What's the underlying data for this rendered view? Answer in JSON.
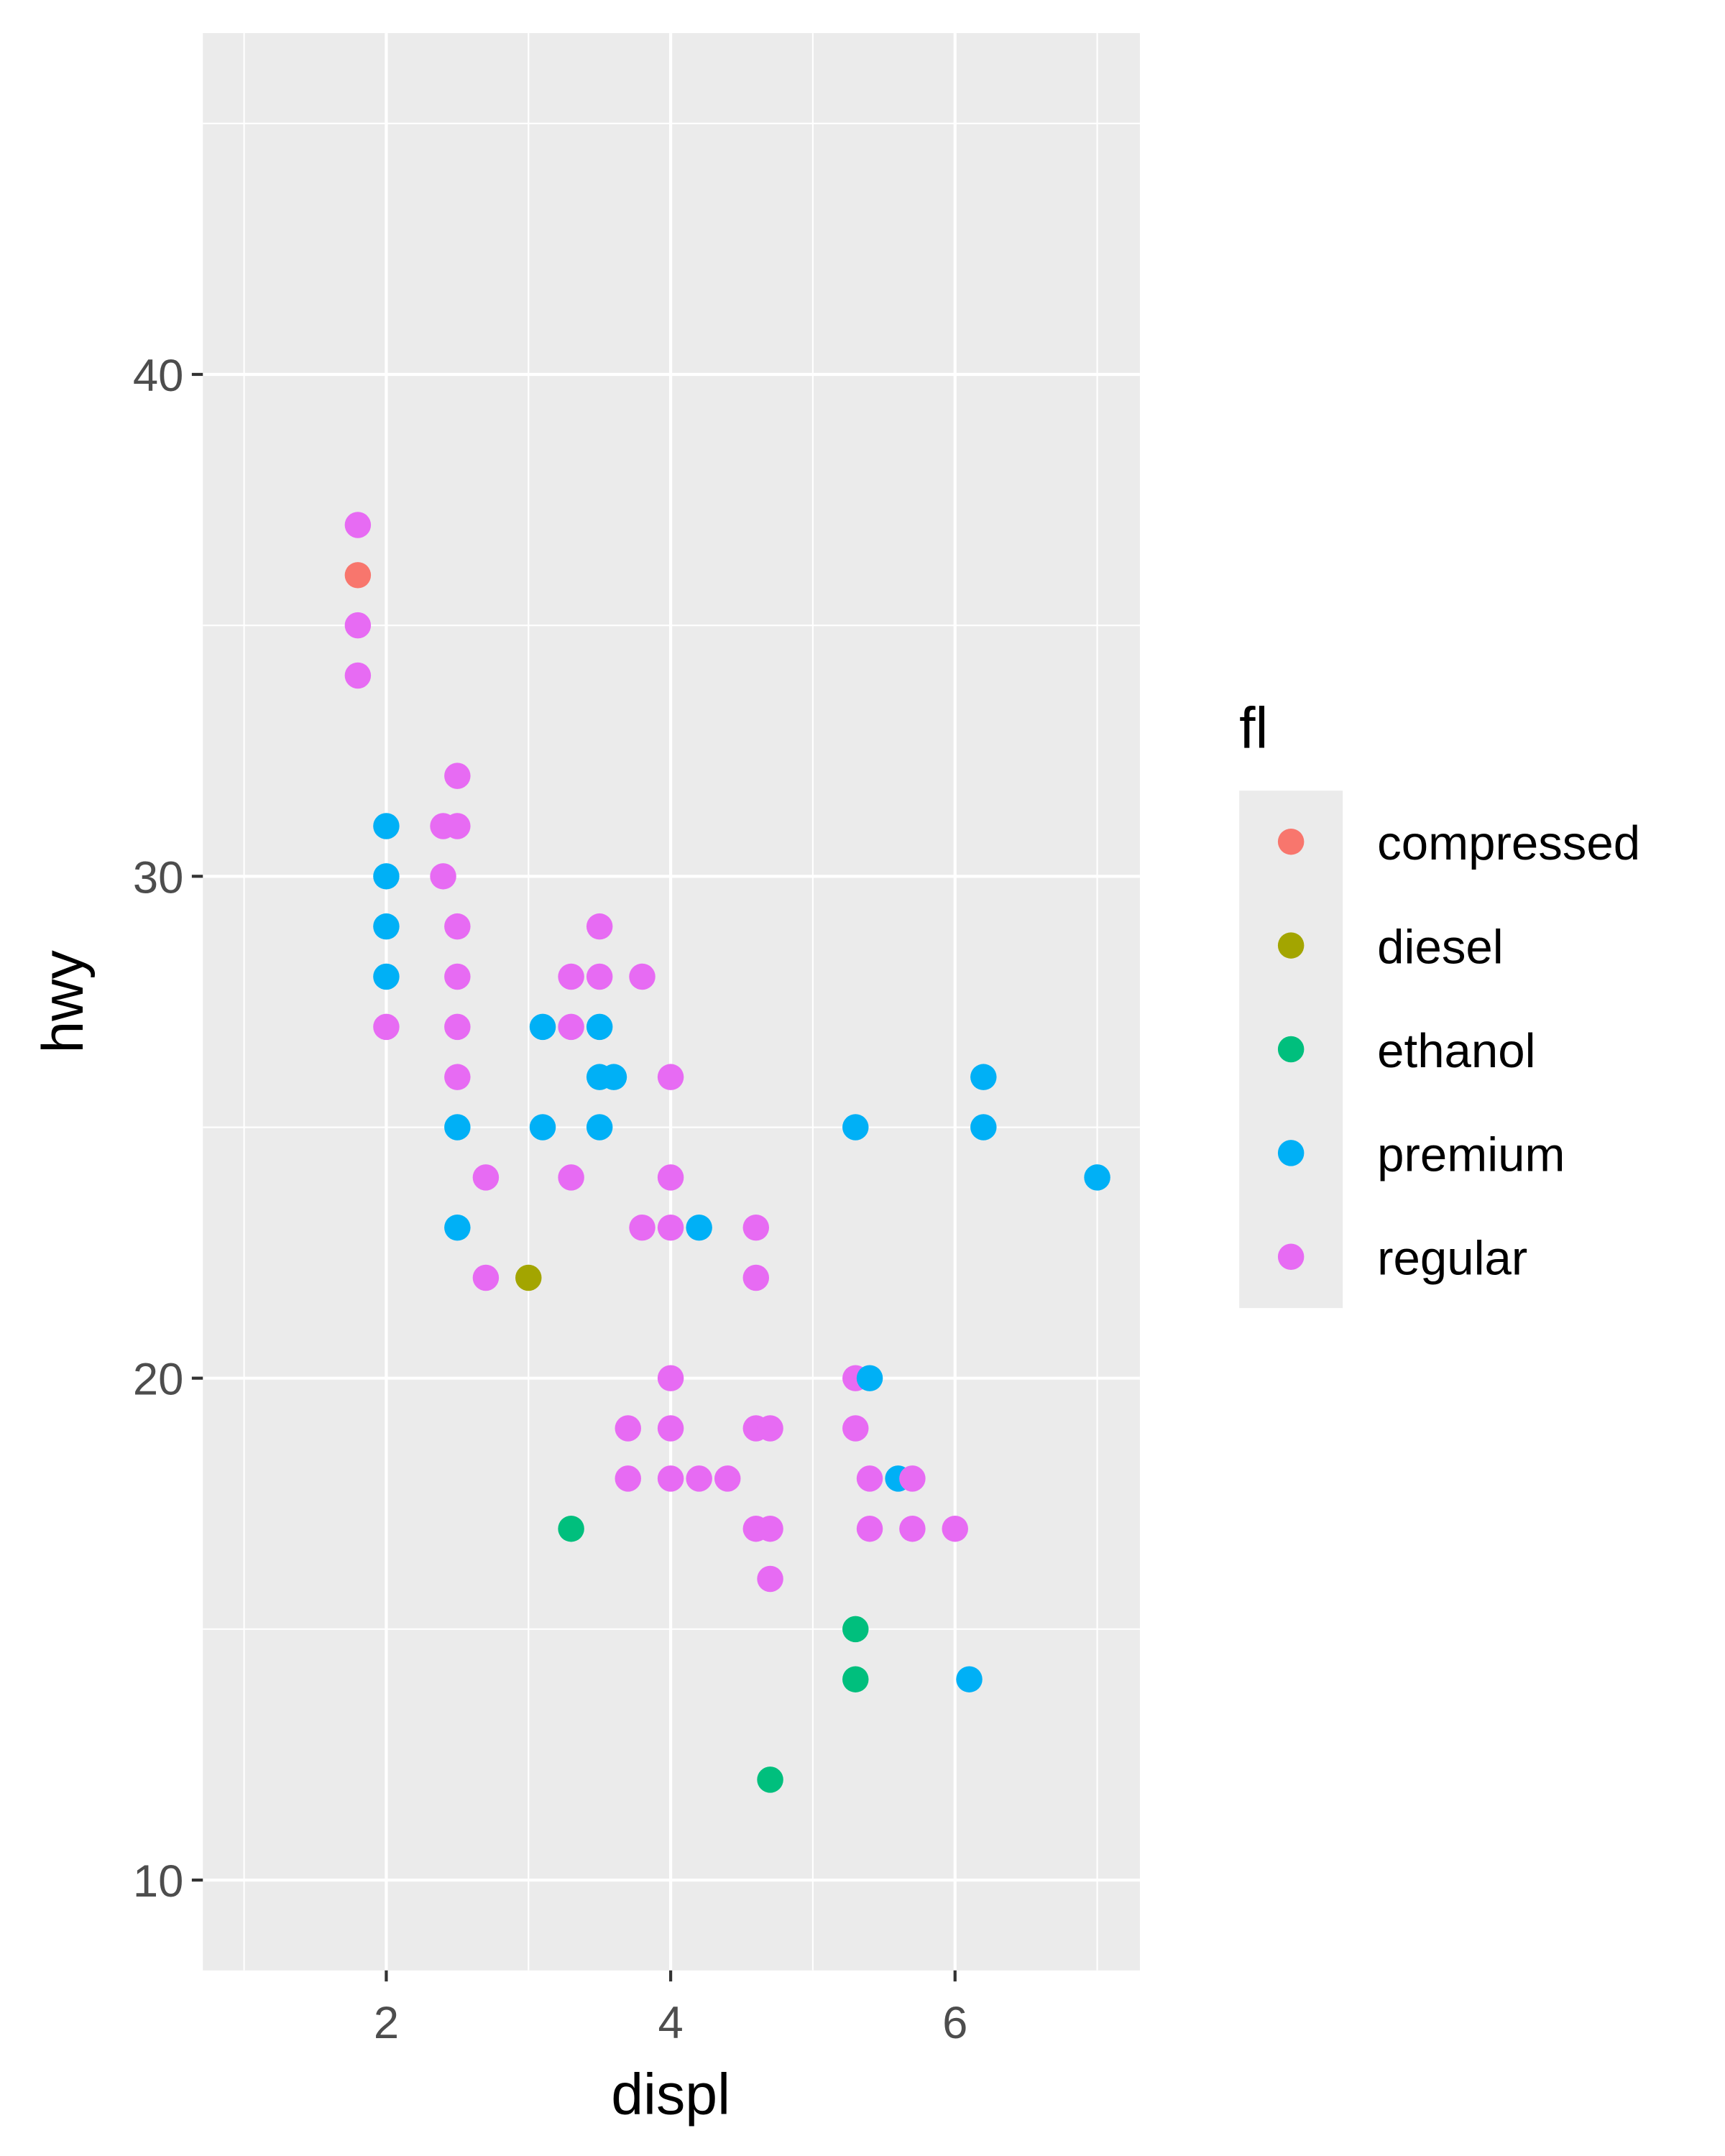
{
  "chart_data": {
    "type": "scatter",
    "title": "",
    "xlabel": "displ",
    "ylabel": "hwy",
    "xlim": [
      0.71,
      7.3
    ],
    "ylim": [
      8.2,
      46.8
    ],
    "x_ticks": [
      2,
      4,
      6
    ],
    "y_ticks": [
      10,
      20,
      30,
      40
    ],
    "x_tick_labels": [
      "2",
      "4",
      "6"
    ],
    "y_tick_labels": [
      "10",
      "20",
      "30",
      "40"
    ],
    "x_minor": [
      1,
      3,
      5,
      7
    ],
    "y_minor": [
      15,
      25,
      35,
      45
    ],
    "grid": true,
    "legend": {
      "title": "fl",
      "placement": "right",
      "entries": [
        "compressed",
        "diesel",
        "ethanol",
        "premium",
        "regular"
      ]
    },
    "colors": {
      "compressed": "#F8766D",
      "diesel": "#A3A500",
      "ethanol": "#00BF7D",
      "premium": "#00B0F6",
      "regular": "#E76BF3"
    },
    "points": [
      {
        "x": 1.8,
        "y": 37,
        "fl": "regular"
      },
      {
        "x": 1.8,
        "y": 36,
        "fl": "compressed"
      },
      {
        "x": 1.8,
        "y": 35,
        "fl": "regular"
      },
      {
        "x": 1.8,
        "y": 34,
        "fl": "regular"
      },
      {
        "x": 2.5,
        "y": 32,
        "fl": "regular"
      },
      {
        "x": 2.0,
        "y": 31,
        "fl": "premium"
      },
      {
        "x": 2.0,
        "y": 30,
        "fl": "premium"
      },
      {
        "x": 2.0,
        "y": 29,
        "fl": "premium"
      },
      {
        "x": 2.0,
        "y": 28,
        "fl": "premium"
      },
      {
        "x": 2.0,
        "y": 27,
        "fl": "regular"
      },
      {
        "x": 2.4,
        "y": 31,
        "fl": "regular"
      },
      {
        "x": 2.5,
        "y": 31,
        "fl": "regular"
      },
      {
        "x": 2.4,
        "y": 30,
        "fl": "regular"
      },
      {
        "x": 2.5,
        "y": 29,
        "fl": "regular"
      },
      {
        "x": 2.5,
        "y": 28,
        "fl": "regular"
      },
      {
        "x": 2.5,
        "y": 27,
        "fl": "regular"
      },
      {
        "x": 2.5,
        "y": 26,
        "fl": "regular"
      },
      {
        "x": 2.5,
        "y": 25,
        "fl": "premium"
      },
      {
        "x": 2.7,
        "y": 24,
        "fl": "regular"
      },
      {
        "x": 2.5,
        "y": 23,
        "fl": "premium"
      },
      {
        "x": 2.7,
        "y": 22,
        "fl": "regular"
      },
      {
        "x": 3.0,
        "y": 22,
        "fl": "diesel"
      },
      {
        "x": 3.3,
        "y": 28,
        "fl": "regular"
      },
      {
        "x": 3.3,
        "y": 27,
        "fl": "regular"
      },
      {
        "x": 3.1,
        "y": 27,
        "fl": "premium"
      },
      {
        "x": 3.1,
        "y": 25,
        "fl": "premium"
      },
      {
        "x": 3.3,
        "y": 24,
        "fl": "regular"
      },
      {
        "x": 3.5,
        "y": 27,
        "fl": "premium"
      },
      {
        "x": 3.5,
        "y": 29,
        "fl": "regular"
      },
      {
        "x": 3.5,
        "y": 28,
        "fl": "regular"
      },
      {
        "x": 3.8,
        "y": 28,
        "fl": "regular"
      },
      {
        "x": 3.5,
        "y": 26,
        "fl": "premium"
      },
      {
        "x": 3.6,
        "y": 26,
        "fl": "premium"
      },
      {
        "x": 3.5,
        "y": 25,
        "fl": "premium"
      },
      {
        "x": 4.0,
        "y": 26,
        "fl": "regular"
      },
      {
        "x": 4.0,
        "y": 24,
        "fl": "regular"
      },
      {
        "x": 3.8,
        "y": 23,
        "fl": "regular"
      },
      {
        "x": 4.0,
        "y": 23,
        "fl": "regular"
      },
      {
        "x": 4.2,
        "y": 23,
        "fl": "premium"
      },
      {
        "x": 4.6,
        "y": 23,
        "fl": "regular"
      },
      {
        "x": 4.6,
        "y": 22,
        "fl": "regular"
      },
      {
        "x": 5.3,
        "y": 25,
        "fl": "premium"
      },
      {
        "x": 6.2,
        "y": 26,
        "fl": "premium"
      },
      {
        "x": 6.2,
        "y": 25,
        "fl": "premium"
      },
      {
        "x": 7.0,
        "y": 24,
        "fl": "premium"
      },
      {
        "x": 4.0,
        "y": 20,
        "fl": "regular"
      },
      {
        "x": 3.7,
        "y": 19,
        "fl": "regular"
      },
      {
        "x": 4.0,
        "y": 19,
        "fl": "regular"
      },
      {
        "x": 3.7,
        "y": 18,
        "fl": "regular"
      },
      {
        "x": 4.0,
        "y": 18,
        "fl": "regular"
      },
      {
        "x": 4.2,
        "y": 18,
        "fl": "regular"
      },
      {
        "x": 4.4,
        "y": 18,
        "fl": "regular"
      },
      {
        "x": 4.6,
        "y": 19,
        "fl": "regular"
      },
      {
        "x": 4.7,
        "y": 19,
        "fl": "regular"
      },
      {
        "x": 4.6,
        "y": 17,
        "fl": "regular"
      },
      {
        "x": 4.7,
        "y": 17,
        "fl": "regular"
      },
      {
        "x": 4.7,
        "y": 16,
        "fl": "regular"
      },
      {
        "x": 3.3,
        "y": 17,
        "fl": "ethanol"
      },
      {
        "x": 4.7,
        "y": 12,
        "fl": "ethanol"
      },
      {
        "x": 5.3,
        "y": 15,
        "fl": "ethanol"
      },
      {
        "x": 5.3,
        "y": 14,
        "fl": "ethanol"
      },
      {
        "x": 5.3,
        "y": 20,
        "fl": "regular"
      },
      {
        "x": 5.4,
        "y": 20,
        "fl": "premium"
      },
      {
        "x": 5.3,
        "y": 19,
        "fl": "regular"
      },
      {
        "x": 5.4,
        "y": 18,
        "fl": "regular"
      },
      {
        "x": 5.6,
        "y": 18,
        "fl": "premium"
      },
      {
        "x": 5.7,
        "y": 18,
        "fl": "regular"
      },
      {
        "x": 5.4,
        "y": 17,
        "fl": "regular"
      },
      {
        "x": 5.7,
        "y": 17,
        "fl": "regular"
      },
      {
        "x": 6.0,
        "y": 17,
        "fl": "regular"
      },
      {
        "x": 6.1,
        "y": 14,
        "fl": "premium"
      }
    ]
  }
}
